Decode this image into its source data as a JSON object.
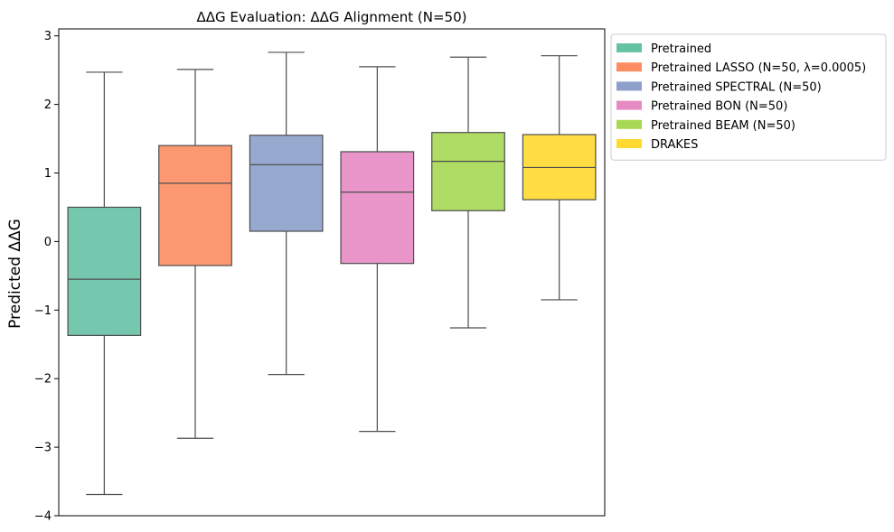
{
  "chart_data": {
    "type": "box",
    "title": "ΔΔG Evaluation: ΔΔG Alignment (N=50)",
    "xlabel": "",
    "ylabel": "Predicted ΔΔG",
    "ylim": [
      -4,
      3.1
    ],
    "yticks": [
      -4,
      -3,
      -2,
      -1,
      0,
      1,
      2,
      3
    ],
    "ytick_labels": [
      "−4",
      "−3",
      "−2",
      "−1",
      "0",
      "1",
      "2",
      "3"
    ],
    "legend_position": "outside-upper-right",
    "grid": false,
    "series": [
      {
        "name": "Pretrained",
        "color": "#66c2a5",
        "whisker_low": -3.69,
        "q1": -1.37,
        "median": -0.55,
        "q3": 0.5,
        "whisker_high": 2.47
      },
      {
        "name": "Pretrained LASSO (N=50, λ=0.0005)",
        "color": "#fc8d62",
        "whisker_low": -2.87,
        "q1": -0.35,
        "median": 0.85,
        "q3": 1.4,
        "whisker_high": 2.51
      },
      {
        "name": "Pretrained SPECTRAL (N=50)",
        "color": "#8da0cb",
        "whisker_low": -1.94,
        "q1": 0.15,
        "median": 1.12,
        "q3": 1.55,
        "whisker_high": 2.76
      },
      {
        "name": "Pretrained BON (N=50)",
        "color": "#e78ac3",
        "whisker_low": -2.77,
        "q1": -0.32,
        "median": 0.72,
        "q3": 1.31,
        "whisker_high": 2.55
      },
      {
        "name": "Pretrained BEAM (N=50)",
        "color": "#a6d854",
        "whisker_low": -1.26,
        "q1": 0.45,
        "median": 1.17,
        "q3": 1.59,
        "whisker_high": 2.69
      },
      {
        "name": "DRAKES",
        "color": "#ffd92f",
        "whisker_low": -0.85,
        "q1": 0.61,
        "median": 1.08,
        "q3": 1.56,
        "whisker_high": 2.71
      }
    ]
  }
}
